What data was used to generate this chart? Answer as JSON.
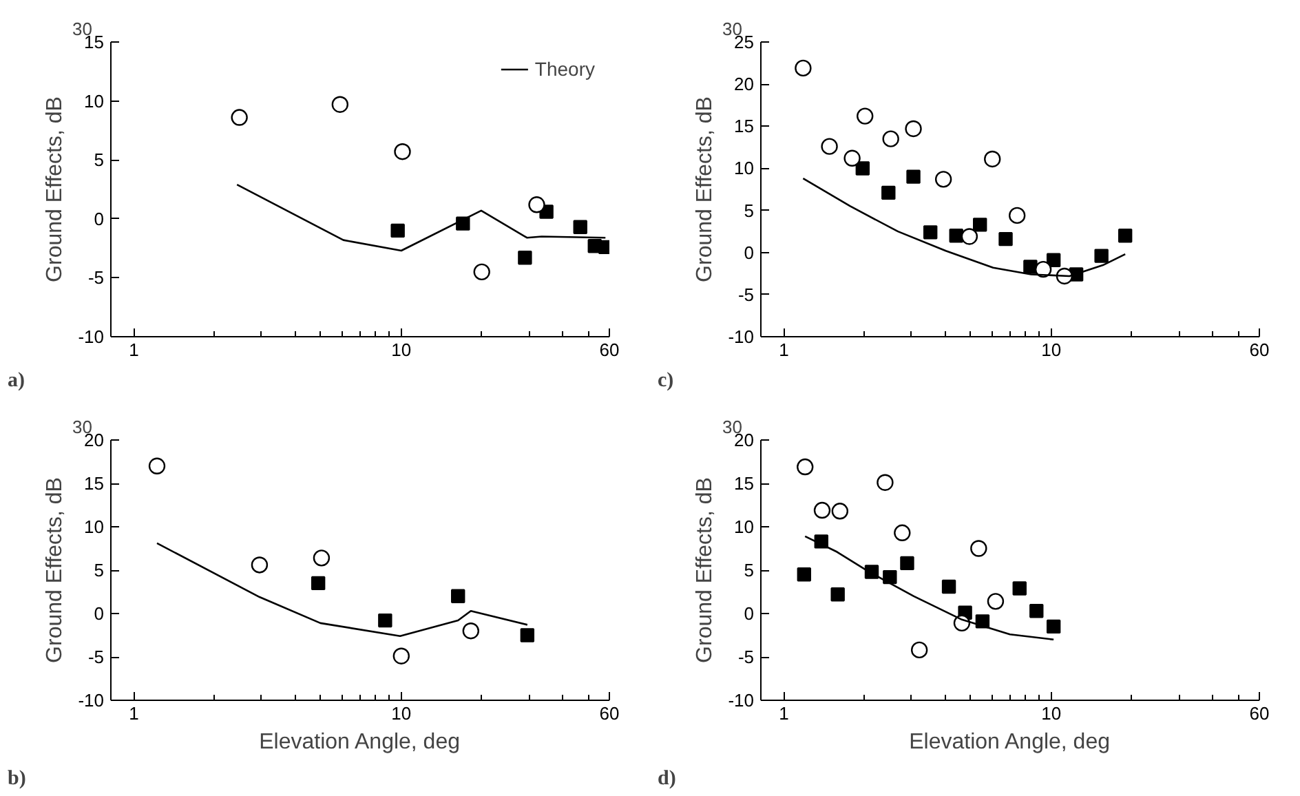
{
  "chart_data": [
    {
      "type": "scatter",
      "ylabel": "Ground Effects, dB",
      "annotations": [
        "30",
        "a)"
      ],
      "xlim": [
        0.82,
        60
      ],
      "ylim": [
        -10,
        15
      ],
      "log": "x",
      "legend": "top right",
      "grid": false,
      "xticks": [
        1,
        {
          "value": 2,
          "label": null
        },
        {
          "value": 3,
          "label": null
        },
        {
          "value": 4,
          "label": null
        },
        {
          "value": 5,
          "label": null
        },
        {
          "value": 6,
          "label": null
        },
        {
          "value": 7,
          "label": null
        },
        {
          "value": 8,
          "label": null
        },
        {
          "value": 9,
          "label": null
        },
        10,
        {
          "value": 20,
          "label": null
        },
        {
          "value": 30,
          "label": null
        },
        {
          "value": 40,
          "label": null
        },
        {
          "value": 50,
          "label": null
        },
        60
      ],
      "yticks": [
        -10,
        -5,
        0,
        5,
        10,
        15
      ],
      "series": [
        {
          "marker": "square",
          "color": "#000000",
          "x": [
            9.7,
            17.0,
            29.0,
            34.9,
            46.7,
            52.9,
            58
          ],
          "values": [
            -1.0,
            -0.4,
            -3.3,
            0.6,
            -0.7,
            -2.3,
            -2.4
          ]
        },
        {
          "marker": "circle",
          "color": "#000000",
          "x": [
            2.48,
            5.9,
            10.1,
            20.0,
            32.1
          ],
          "values": [
            8.6,
            9.7,
            5.7,
            -4.5,
            1.2
          ]
        },
        {
          "type": "line",
          "name": "Theory",
          "marker": "none",
          "line_style": "solid",
          "color": "#000000",
          "x": [
            2.43,
            6.07,
            10,
            19.9,
            29.5,
            33.5,
            58
          ],
          "values": [
            2.9,
            -1.8,
            -2.7,
            0.7,
            -1.6,
            -1.5,
            -1.6
          ]
        }
      ]
    },
    {
      "type": "scatter",
      "ylabel": "Ground Effects, dB",
      "annotations": [
        "30",
        "c)"
      ],
      "xlim": [
        0.82,
        60
      ],
      "ylim": [
        -10,
        25
      ],
      "log": "x",
      "grid": false,
      "xticks": [
        1,
        {
          "value": 2,
          "label": null
        },
        {
          "value": 3,
          "label": null
        },
        {
          "value": 4,
          "label": null
        },
        {
          "value": 5,
          "label": null
        },
        {
          "value": 6,
          "label": null
        },
        {
          "value": 7,
          "label": null
        },
        {
          "value": 8,
          "label": null
        },
        {
          "value": 9,
          "label": null
        },
        10,
        {
          "value": 20,
          "label": null
        },
        {
          "value": 30,
          "label": null
        },
        {
          "value": 40,
          "label": null
        },
        {
          "value": 50,
          "label": null
        },
        60
      ],
      "yticks": [
        -10,
        -5,
        0,
        5,
        10,
        15,
        20,
        25
      ],
      "series": [
        {
          "marker": "square",
          "color": "#000000",
          "x": [
            1.97,
            2.46,
            3.05,
            3.53,
            4.41,
            5.41,
            6.75,
            8.35,
            10.2,
            12.4,
            15.4,
            18.9
          ],
          "values": [
            10.0,
            7.1,
            9.0,
            2.4,
            2.0,
            3.3,
            1.6,
            -1.7,
            -0.9,
            -2.6,
            -0.4,
            2.0
          ]
        },
        {
          "marker": "circle",
          "color": "#000000",
          "x": [
            1.18,
            1.48,
            1.8,
            2.01,
            2.51,
            3.05,
            3.95,
            4.94,
            6.02,
            7.45,
            9.33,
            11.2
          ],
          "values": [
            21.9,
            12.6,
            11.2,
            16.2,
            13.5,
            14.7,
            8.7,
            1.9,
            11.1,
            4.4,
            -2.0,
            -2.8
          ]
        },
        {
          "type": "line",
          "marker": "none",
          "line_style": "solid",
          "color": "#000000",
          "x": [
            1.18,
            1.77,
            2.67,
            4.03,
            6.06,
            8.4,
            11.7,
            15.6,
            18.9
          ],
          "values": [
            8.8,
            5.5,
            2.5,
            0.2,
            -1.8,
            -2.6,
            -2.8,
            -1.5,
            -0.2
          ]
        }
      ]
    },
    {
      "type": "scatter",
      "ylabel": "Ground Effects, dB",
      "xlabel": "Elevation Angle, deg",
      "annotations": [
        "30",
        "b)"
      ],
      "xlim": [
        0.82,
        60
      ],
      "ylim": [
        -10,
        20
      ],
      "log": "x",
      "grid": false,
      "xticks": [
        1,
        {
          "value": 2,
          "label": null
        },
        {
          "value": 3,
          "label": null
        },
        {
          "value": 4,
          "label": null
        },
        {
          "value": 5,
          "label": null
        },
        {
          "value": 6,
          "label": null
        },
        {
          "value": 7,
          "label": null
        },
        {
          "value": 8,
          "label": null
        },
        {
          "value": 9,
          "label": null
        },
        10,
        {
          "value": 20,
          "label": null
        },
        {
          "value": 30,
          "label": null
        },
        {
          "value": 40,
          "label": null
        },
        {
          "value": 50,
          "label": null
        },
        60
      ],
      "yticks": [
        -10,
        -5,
        0,
        5,
        10,
        15,
        20
      ],
      "series": [
        {
          "marker": "square",
          "color": "#000000",
          "x": [
            4.89,
            8.7,
            16.3,
            29.6
          ],
          "values": [
            3.5,
            -0.8,
            2.0,
            -2.5
          ]
        },
        {
          "marker": "circle",
          "color": "#000000",
          "x": [
            1.22,
            2.95,
            5.03,
            10.0,
            18.2
          ],
          "values": [
            17.0,
            5.6,
            6.4,
            -4.9,
            -2.0
          ]
        },
        {
          "type": "line",
          "marker": "none",
          "line_style": "solid",
          "color": "#000000",
          "x": [
            1.22,
            2.95,
            4.98,
            9.9,
            16.3,
            18.2,
            29.6
          ],
          "values": [
            8.1,
            1.9,
            -1.1,
            -2.6,
            -0.8,
            0.3,
            -1.3
          ]
        }
      ]
    },
    {
      "type": "scatter",
      "ylabel": "Ground Effects, dB",
      "xlabel": "Elevation Angle, deg",
      "annotations": [
        "30",
        "d)"
      ],
      "xlim": [
        0.82,
        60
      ],
      "ylim": [
        -10,
        20
      ],
      "log": "x",
      "grid": false,
      "xticks": [
        1,
        {
          "value": 2,
          "label": null
        },
        {
          "value": 3,
          "label": null
        },
        {
          "value": 4,
          "label": null
        },
        {
          "value": 5,
          "label": null
        },
        {
          "value": 6,
          "label": null
        },
        {
          "value": 7,
          "label": null
        },
        {
          "value": 8,
          "label": null
        },
        {
          "value": 9,
          "label": null
        },
        10,
        {
          "value": 20,
          "label": null
        },
        {
          "value": 30,
          "label": null
        },
        {
          "value": 40,
          "label": null
        },
        {
          "value": 50,
          "label": null
        },
        60
      ],
      "yticks": [
        -10,
        -5,
        0,
        5,
        10,
        15,
        20
      ],
      "series": [
        {
          "marker": "square",
          "color": "#000000",
          "x": [
            1.19,
            1.38,
            1.59,
            2.13,
            2.49,
            2.89,
            4.14,
            4.76,
            5.53,
            7.61,
            8.8,
            10.2
          ],
          "values": [
            4.5,
            8.3,
            2.2,
            4.8,
            4.2,
            5.8,
            3.1,
            0.1,
            -0.9,
            2.9,
            0.3,
            -1.5
          ]
        },
        {
          "marker": "circle",
          "color": "#000000",
          "x": [
            1.2,
            1.39,
            1.62,
            2.39,
            2.77,
            3.21,
            4.63,
            5.35,
            6.19
          ],
          "values": [
            16.9,
            11.9,
            11.8,
            15.1,
            9.3,
            -4.2,
            -1.1,
            7.5,
            1.4
          ]
        },
        {
          "type": "line",
          "marker": "none",
          "line_style": "solid",
          "color": "#000000",
          "x": [
            1.2,
            1.58,
            2.11,
            3.06,
            4.63,
            7.0,
            10.2
          ],
          "values": [
            8.9,
            7.1,
            4.7,
            2.0,
            -0.7,
            -2.4,
            -3.0
          ]
        }
      ]
    }
  ]
}
